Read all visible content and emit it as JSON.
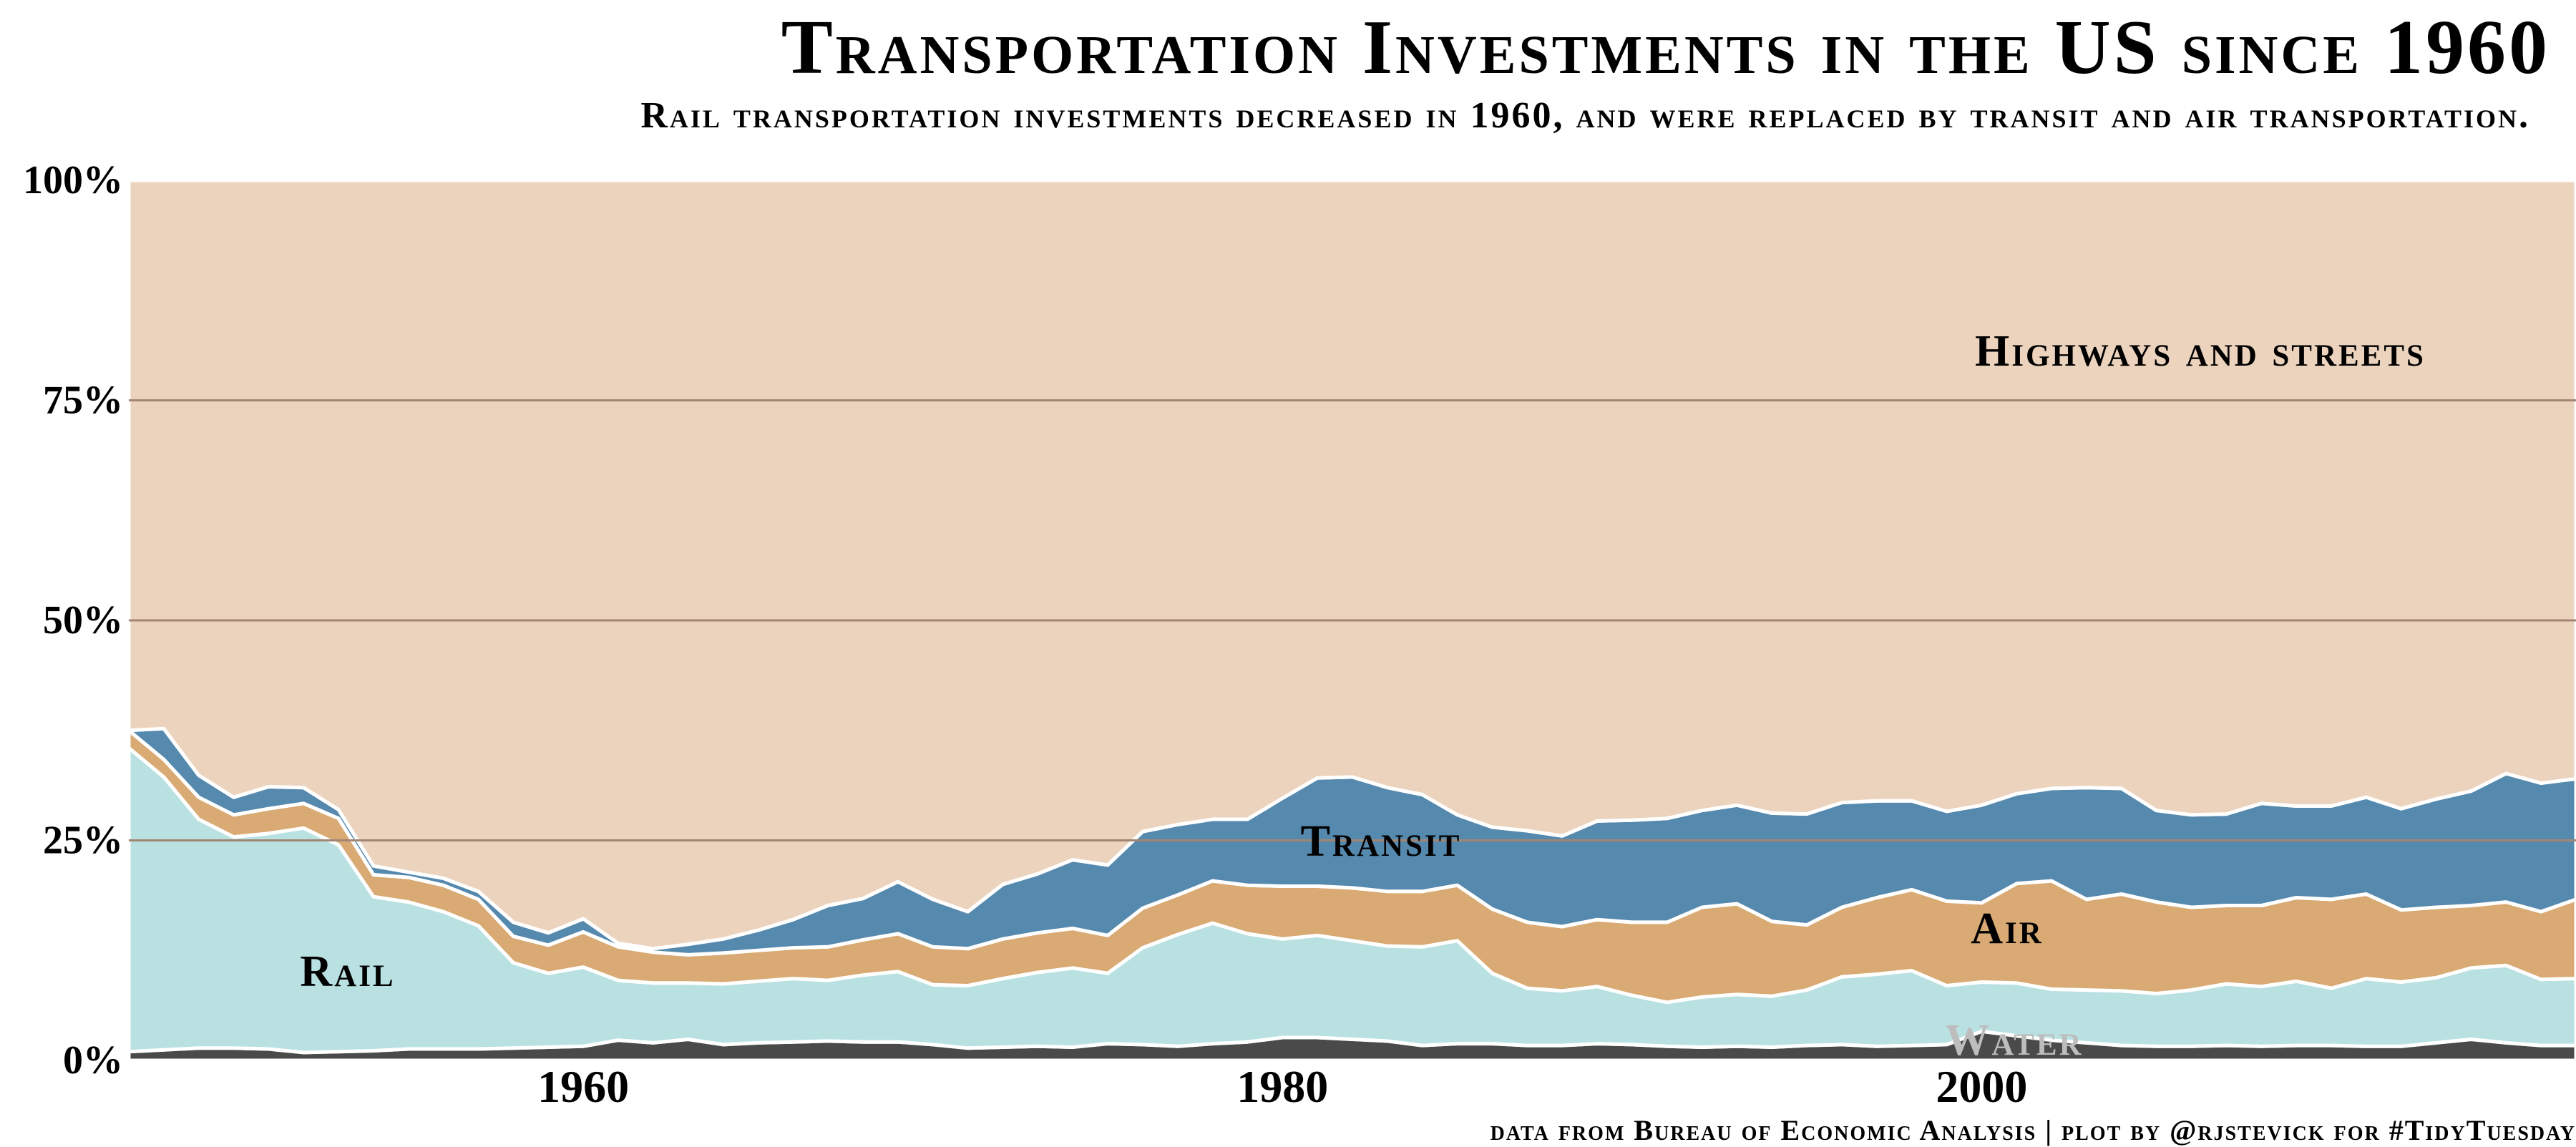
{
  "title": "Transportation Investments in the US since 1960",
  "subtitle": "Rail transportation investments decreased in 1960, and were replaced by transit and air transportation.",
  "caption": "data from Bureau of Economic Analysis | plot by @rjstevick for #TidyTuesday",
  "colors": {
    "background": "#ecd3bd",
    "grid": "#a08673",
    "outline": "#ffffff",
    "water": "#4a4a4a",
    "rail": "#b9e1e2",
    "air": "#d9aa73",
    "transit": "#5689ae",
    "highways": "#ecd3bd"
  },
  "chart_data": {
    "type": "area",
    "stacked": true,
    "normalized": true,
    "xlim": [
      1947,
      2017
    ],
    "ylim": [
      0,
      100
    ],
    "x_ticks": [
      1960,
      1980,
      2000
    ],
    "x_tick_labels": [
      "1960",
      "1980",
      "2000"
    ],
    "y_ticks": [
      0,
      25,
      50,
      75,
      100
    ],
    "y_tick_labels": [
      "0%",
      "25%",
      "50%",
      "75%",
      "100%"
    ],
    "xlabel": "",
    "ylabel": "",
    "grid": true,
    "years": [
      1947,
      1948,
      1949,
      1950,
      1951,
      1952,
      1953,
      1954,
      1955,
      1956,
      1957,
      1958,
      1959,
      1960,
      1961,
      1962,
      1963,
      1964,
      1965,
      1966,
      1967,
      1968,
      1969,
      1970,
      1971,
      1972,
      1973,
      1974,
      1975,
      1976,
      1977,
      1978,
      1979,
      1980,
      1981,
      1982,
      1983,
      1984,
      1985,
      1986,
      1987,
      1988,
      1989,
      1990,
      1991,
      1992,
      1993,
      1994,
      1995,
      1996,
      1997,
      1998,
      1999,
      2000,
      2001,
      2002,
      2003,
      2004,
      2005,
      2006,
      2007,
      2008,
      2009,
      2010,
      2011,
      2012,
      2013,
      2014,
      2015,
      2016,
      2017
    ],
    "series": [
      {
        "name": "Water",
        "label": "Water",
        "values": [
          1.0,
          1.2,
          1.4,
          1.4,
          1.3,
          0.9,
          1.0,
          1.1,
          1.3,
          1.3,
          1.3,
          1.4,
          1.5,
          1.6,
          2.3,
          2.0,
          2.4,
          1.8,
          2.0,
          2.1,
          2.2,
          2.1,
          2.1,
          1.8,
          1.4,
          1.5,
          1.6,
          1.5,
          1.9,
          1.8,
          1.6,
          1.9,
          2.1,
          2.6,
          2.6,
          2.4,
          2.2,
          1.7,
          1.9,
          1.9,
          1.7,
          1.7,
          1.9,
          1.8,
          1.6,
          1.5,
          1.6,
          1.5,
          1.7,
          1.8,
          1.6,
          1.7,
          1.8,
          3.3,
          2.8,
          2.3,
          2.0,
          1.7,
          1.6,
          1.6,
          1.7,
          1.6,
          1.7,
          1.7,
          1.6,
          1.6,
          2.0,
          2.4,
          2.0,
          1.7,
          1.7
        ]
      },
      {
        "name": "Rail",
        "label": "Rail",
        "values": [
          34.5,
          31.0,
          26.0,
          24.0,
          24.5,
          25.5,
          23.5,
          17.5,
          16.7,
          15.6,
          14.0,
          9.7,
          8.4,
          9.0,
          6.8,
          6.8,
          6.4,
          6.9,
          7.0,
          7.2,
          6.9,
          7.6,
          8.0,
          6.8,
          7.1,
          7.8,
          8.4,
          9.0,
          8.0,
          11.0,
          12.7,
          13.7,
          12.3,
          11.2,
          11.6,
          11.2,
          10.8,
          11.2,
          11.7,
          8.0,
          6.5,
          6.2,
          6.5,
          5.6,
          5.0,
          5.7,
          5.9,
          5.8,
          6.3,
          7.7,
          8.2,
          8.5,
          6.7,
          5.6,
          6.0,
          5.8,
          6.0,
          6.2,
          6.0,
          6.4,
          7.0,
          6.8,
          7.3,
          6.5,
          7.7,
          7.3,
          7.4,
          8.1,
          8.8,
          7.5,
          7.6
        ]
      },
      {
        "name": "Air",
        "label": "Air",
        "values": [
          2.0,
          2.0,
          2.5,
          2.5,
          2.8,
          2.8,
          3.0,
          2.5,
          2.8,
          3.0,
          3.0,
          3.0,
          3.2,
          4.0,
          3.8,
          3.5,
          3.2,
          3.5,
          3.5,
          3.5,
          3.8,
          4.0,
          4.3,
          4.3,
          4.2,
          4.5,
          4.5,
          4.5,
          4.3,
          4.5,
          4.5,
          4.8,
          5.5,
          6.0,
          5.6,
          6.0,
          6.2,
          6.3,
          6.3,
          7.3,
          7.5,
          7.3,
          7.6,
          8.3,
          9.1,
          10.2,
          10.3,
          8.5,
          7.4,
          7.9,
          8.7,
          9.2,
          9.6,
          9.0,
          11.3,
          12.3,
          10.3,
          11.0,
          10.4,
          9.4,
          8.9,
          9.2,
          9.5,
          10.1,
          9.6,
          8.2,
          8.0,
          7.1,
          7.2,
          7.7,
          9.0
        ]
      },
      {
        "name": "Transit",
        "label": "Transit",
        "values": [
          0.0,
          3.5,
          2.5,
          2.0,
          2.5,
          1.8,
          1.0,
          1.0,
          0.6,
          0.8,
          0.9,
          1.6,
          1.4,
          1.5,
          0.4,
          0.4,
          1.2,
          1.6,
          2.3,
          3.2,
          4.7,
          4.7,
          5.9,
          5.4,
          4.2,
          6.2,
          6.7,
          7.8,
          8.0,
          8.7,
          8.0,
          7.0,
          7.5,
          10.0,
          12.3,
          12.6,
          11.8,
          11.0,
          8.0,
          9.3,
          10.4,
          10.3,
          11.2,
          11.6,
          11.8,
          11.0,
          11.2,
          12.3,
          12.6,
          11.9,
          11.0,
          10.1,
          10.2,
          11.1,
          10.2,
          10.5,
          12.7,
          12.0,
          10.4,
          10.5,
          10.4,
          11.6,
          10.4,
          10.6,
          11.0,
          11.5,
          12.3,
          13.0,
          14.6,
          14.6,
          13.7
        ]
      },
      {
        "name": "Highways and streets",
        "label": "Highways and streets",
        "values": [
          62.5,
          62.3,
          67.6,
          70.1,
          68.9,
          69.0,
          71.5,
          77.9,
          78.6,
          79.3,
          80.8,
          84.3,
          85.5,
          83.9,
          86.7,
          87.3,
          86.8,
          86.2,
          85.2,
          84.0,
          82.4,
          81.6,
          79.7,
          81.7,
          83.1,
          80.0,
          78.8,
          77.2,
          77.8,
          74.0,
          73.2,
          72.6,
          72.6,
          70.2,
          67.9,
          67.8,
          69.0,
          69.8,
          72.1,
          73.5,
          73.9,
          74.5,
          72.8,
          72.7,
          72.5,
          71.6,
          71.0,
          71.9,
          72.0,
          70.7,
          70.5,
          70.5,
          71.7,
          71.0,
          69.7,
          69.1,
          69.0,
          69.1,
          71.6,
          72.1,
          72.0,
          70.8,
          71.1,
          71.1,
          70.1,
          71.4,
          70.3,
          69.4,
          67.4,
          68.5,
          68.0
        ]
      }
    ],
    "annotations": [
      "Highways and streets",
      "Transit",
      "Air",
      "Rail",
      "Water"
    ]
  }
}
